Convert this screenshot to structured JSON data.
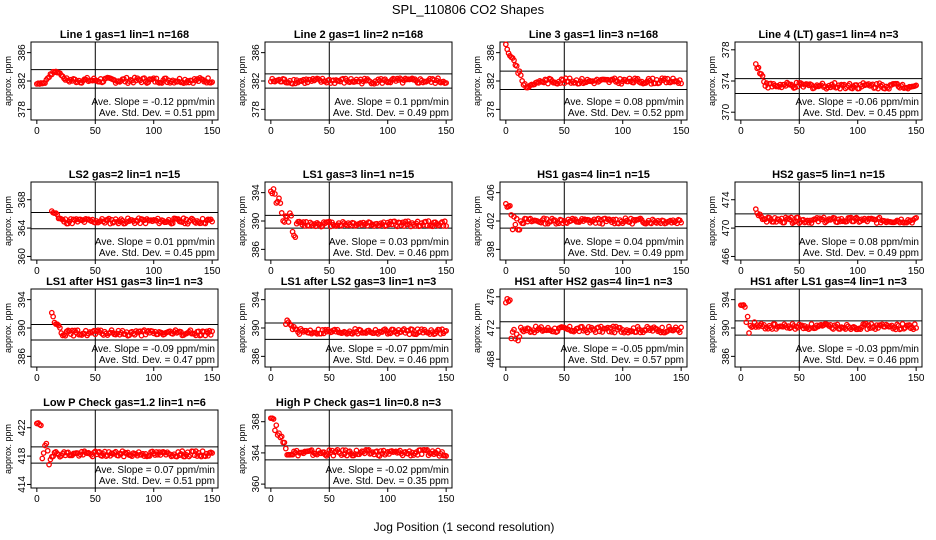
{
  "title": "SPL_110806  CO2 Shapes",
  "xlabel": "Jog Position (1 second resolution)",
  "marker_color": "#ff0000",
  "chart_data": [
    {
      "type": "scatter",
      "title": "Line 1 gas=1 lin=1 n=168",
      "ylabel": "approx. ppm",
      "xlim": [
        -5,
        155
      ],
      "ylim": [
        376.5,
        387.5
      ],
      "xticks": [
        0,
        50,
        100,
        150
      ],
      "yticks": [
        378,
        382,
        386
      ],
      "hlines": [
        383.6,
        381.0
      ],
      "vline": 50,
      "slope": "Ave. Slope = -0.12  ppm/min",
      "sd": "Ave. Std. Dev. = 0.51  ppm",
      "base": 382.1,
      "profile": "bump"
    },
    {
      "type": "scatter",
      "title": "Line 2 gas=1 lin=2 n=168",
      "ylabel": "approx. ppm",
      "xlim": [
        -5,
        155
      ],
      "ylim": [
        376.5,
        387.5
      ],
      "xticks": [
        0,
        50,
        100,
        150
      ],
      "yticks": [
        378,
        382,
        386
      ],
      "hlines": [
        383.0,
        381.0
      ],
      "vline": 50,
      "slope": "Ave. Slope = 0.1  ppm/min",
      "sd": "Ave. Std. Dev. = 0.49  ppm",
      "base": 382.0,
      "profile": "flat"
    },
    {
      "type": "scatter",
      "title": "Line 3 gas=1 lin=3 n=168",
      "ylabel": "approx. ppm",
      "xlim": [
        -5,
        155
      ],
      "ylim": [
        376.5,
        387.5
      ],
      "xticks": [
        0,
        50,
        100,
        150
      ],
      "yticks": [
        378,
        382,
        386
      ],
      "hlines": [
        383.4,
        380.8
      ],
      "vline": 50,
      "slope": "Ave. Slope = 0.08  ppm/min",
      "sd": "Ave. Std. Dev. = 0.52  ppm",
      "base": 382.0,
      "profile": "drop",
      "start": 387.0
    },
    {
      "type": "scatter",
      "title": "Line 4 (LT) gas=1 lin=4 n=3",
      "ylabel": "approx. ppm",
      "xlim": [
        -5,
        155
      ],
      "ylim": [
        369,
        379
      ],
      "xticks": [
        0,
        50,
        100,
        150
      ],
      "yticks": [
        370,
        374,
        378
      ],
      "hlines": [
        374.3,
        372.4
      ],
      "vline": 50,
      "slope": "Ave. Slope = -0.06  ppm/min",
      "sd": "Ave. Std. Dev. = 0.45  ppm",
      "base": 373.4,
      "profile": "late",
      "start": 376.5
    },
    {
      "type": "scatter",
      "title": "LS2 gas=2 lin=1 n=15",
      "ylabel": "approx. ppm",
      "xlim": [
        -5,
        155
      ],
      "ylim": [
        359.5,
        370.5
      ],
      "xticks": [
        0,
        50,
        100,
        150
      ],
      "yticks": [
        360,
        364,
        368
      ],
      "hlines": [
        366.2,
        363.9
      ],
      "vline": 50,
      "slope": "Ave. Slope = 0.01  ppm/min",
      "sd": "Ave. Std. Dev. = 0.45  ppm",
      "base": 365.0,
      "profile": "late",
      "start": 366.5
    },
    {
      "type": "scatter",
      "title": "LS1 gas=3 lin=1 n=15",
      "ylabel": "approx. ppm",
      "xlim": [
        -5,
        155
      ],
      "ylim": [
        384.5,
        395.5
      ],
      "xticks": [
        0,
        50,
        100,
        150
      ],
      "yticks": [
        386,
        390,
        394
      ],
      "hlines": [
        390.8,
        389.0
      ],
      "vline": 50,
      "slope": "Ave. Slope = 0.03  ppm/min",
      "sd": "Ave. Std. Dev. = 0.46  ppm",
      "base": 389.6,
      "profile": "erratic",
      "start": 395.0
    },
    {
      "type": "scatter",
      "title": "HS1 gas=4 lin=1 n=15",
      "ylabel": "approx. ppm",
      "xlim": [
        -5,
        155
      ],
      "ylim": [
        396.5,
        407.5
      ],
      "xticks": [
        0,
        50,
        100,
        150
      ],
      "yticks": [
        398,
        402,
        406
      ],
      "hlines": [
        403.0,
        401.0
      ],
      "vline": 50,
      "slope": "Ave. Slope = 0.04  ppm/min",
      "sd": "Ave. Std. Dev. = 0.49  ppm",
      "base": 402.0,
      "profile": "early",
      "start": 404.2
    },
    {
      "type": "scatter",
      "title": "HS2 gas=5 lin=1 n=15",
      "ylabel": "approx. ppm",
      "xlim": [
        -5,
        155
      ],
      "ylim": [
        465.5,
        476.5
      ],
      "xticks": [
        0,
        50,
        100,
        150
      ],
      "yticks": [
        466,
        470,
        474
      ],
      "hlines": [
        472.0,
        470.2
      ],
      "vline": 50,
      "slope": "Ave. Slope = 0.08  ppm/min",
      "sd": "Ave. Std. Dev. = 0.49  ppm",
      "base": 471.1,
      "profile": "late",
      "start": 472.5
    },
    {
      "type": "scatter",
      "title": "LS1 after HS1 gas=3 lin=1 n=3",
      "ylabel": "approx. ppm",
      "xlim": [
        -5,
        155
      ],
      "ylim": [
        384.5,
        395.5
      ],
      "xticks": [
        0,
        50,
        100,
        150
      ],
      "yticks": [
        386,
        390,
        394
      ],
      "hlines": [
        390.5,
        388.3
      ],
      "vline": 50,
      "slope": "Ave. Slope = -0.09  ppm/min",
      "sd": "Ave. Std. Dev. = 0.47  ppm",
      "base": 389.3,
      "profile": "late",
      "start": 392.0
    },
    {
      "type": "scatter",
      "title": "LS1 after LS2 gas=3 lin=1 n=3",
      "ylabel": "approx. ppm",
      "xlim": [
        -5,
        155
      ],
      "ylim": [
        384.5,
        395.5
      ],
      "xticks": [
        0,
        50,
        100,
        150
      ],
      "yticks": [
        386,
        390,
        394
      ],
      "hlines": [
        390.7,
        388.4
      ],
      "vline": 50,
      "slope": "Ave. Slope = -0.07  ppm/min",
      "sd": "Ave. Std. Dev. = 0.46  ppm",
      "base": 389.5,
      "profile": "late",
      "start": 391.0
    },
    {
      "type": "scatter",
      "title": "HS1 after HS2 gas=4 lin=1 n=3",
      "ylabel": "approx. ppm",
      "xlim": [
        -5,
        155
      ],
      "ylim": [
        467,
        477
      ],
      "xticks": [
        0,
        50,
        100,
        150
      ],
      "yticks": [
        468,
        472,
        476
      ],
      "hlines": [
        472.8,
        470.7
      ],
      "vline": 50,
      "slope": "Ave. Slope = -0.05  ppm/min",
      "sd": "Ave. Std. Dev. = 0.57  ppm",
      "base": 471.8,
      "profile": "early",
      "start": 475.5
    },
    {
      "type": "scatter",
      "title": "HS1 after LS1 gas=4 lin=1 n=3",
      "ylabel": "approx. ppm",
      "xlim": [
        -5,
        155
      ],
      "ylim": [
        384.5,
        395.5
      ],
      "xticks": [
        0,
        50,
        100,
        150
      ],
      "yticks": [
        386,
        390,
        394
      ],
      "hlines": [
        391.0,
        389.0
      ],
      "vline": 50,
      "slope": "Ave. Slope = -0.03  ppm/min",
      "sd": "Ave. Std. Dev. = 0.46  ppm",
      "base": 390.2,
      "profile": "early",
      "start": 393.0
    },
    {
      "type": "scatter",
      "title": "Low P Check gas=1.2 lin=1 n=6",
      "ylabel": "approx. ppm",
      "xlim": [
        -5,
        155
      ],
      "ylim": [
        413.5,
        424.5
      ],
      "xticks": [
        0,
        50,
        100,
        150
      ],
      "yticks": [
        414,
        418,
        422
      ],
      "hlines": [
        419.3,
        417.0
      ],
      "vline": 50,
      "slope": "Ave. Slope = 0.07  ppm/min",
      "sd": "Ave. Std. Dev. = 0.51  ppm",
      "base": 418.3,
      "profile": "early",
      "start": 422.5
    },
    {
      "type": "scatter",
      "title": "High P Check gas=1 lin=0.8 n=3",
      "ylabel": "approx. ppm",
      "xlim": [
        -5,
        155
      ],
      "ylim": [
        359.5,
        369.5
      ],
      "xticks": [
        0,
        50,
        100,
        150
      ],
      "yticks": [
        360,
        364,
        368
      ],
      "hlines": [
        364.9,
        363.1
      ],
      "vline": 50,
      "slope": "Ave. Slope = -0.02  ppm/min",
      "sd": "Ave. Std. Dev. = 0.35  ppm",
      "base": 364.0,
      "profile": "decay",
      "start": 368.5
    }
  ]
}
